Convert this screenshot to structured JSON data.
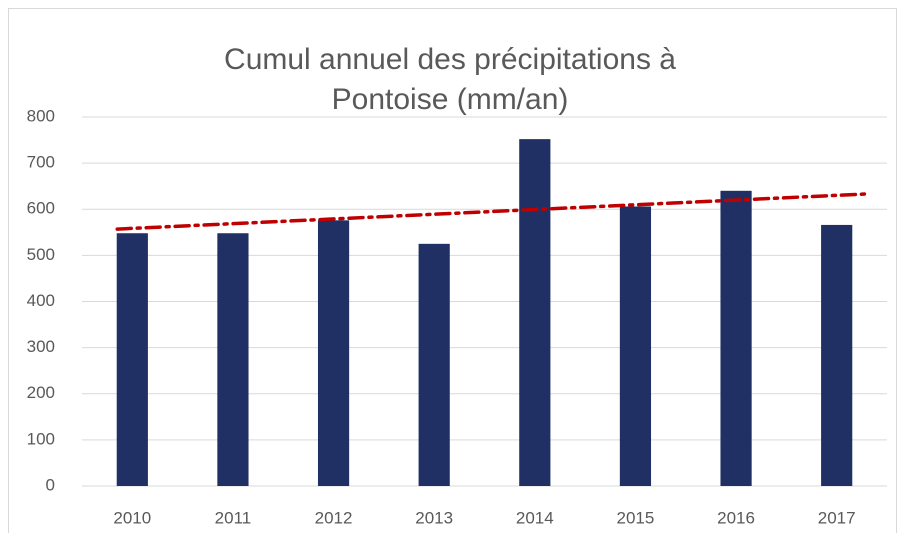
{
  "chart_data": {
    "type": "bar",
    "title": "Cumul annuel des précipitations à Pontoise (mm/an)",
    "categories": [
      "2010",
      "2011",
      "2012",
      "2013",
      "2014",
      "2015",
      "2016",
      "2017"
    ],
    "values": [
      548,
      548,
      576,
      525,
      752,
      606,
      640,
      566
    ],
    "color": "#203064",
    "trendline": {
      "start": 557,
      "end": 633,
      "color": "#c00000"
    },
    "ylim": [
      0,
      800
    ],
    "yticks": [
      0,
      100,
      200,
      300,
      400,
      500,
      600,
      700,
      800
    ],
    "grid": true
  }
}
